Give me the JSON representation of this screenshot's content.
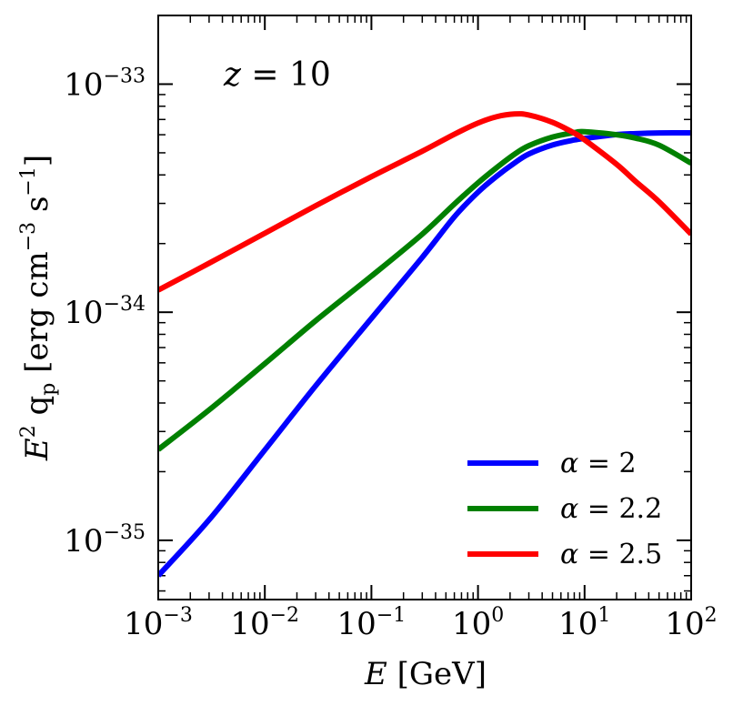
{
  "chart_data": {
    "type": "line",
    "title": "",
    "annotation": {
      "var": "z",
      "eq": " = ",
      "val": "10"
    },
    "xlabel": {
      "var": "E",
      "rest": " [GeV]"
    },
    "ylabel": {
      "var": "E",
      "sup": "2",
      "mid": " q",
      "sub": "p",
      "u1": " [erg cm",
      "sup2": "−3",
      "u2": " s",
      "sup3": "−1",
      "u3": "]"
    },
    "xscale": "log",
    "yscale": "log",
    "xlim": [
      0.001,
      100
    ],
    "ylim": [
      5.5e-36,
      2e-33
    ],
    "x_ticks": [
      {
        "value": 0.001,
        "base": "10",
        "exp": "−3"
      },
      {
        "value": 0.01,
        "base": "10",
        "exp": "−2"
      },
      {
        "value": 0.1,
        "base": "10",
        "exp": "−1"
      },
      {
        "value": 1,
        "base": "10",
        "exp": "0"
      },
      {
        "value": 10,
        "base": "10",
        "exp": "1"
      },
      {
        "value": 100,
        "base": "10",
        "exp": "2"
      }
    ],
    "y_ticks": [
      {
        "value": 1e-35,
        "base": "10",
        "exp": "−35"
      },
      {
        "value": 1e-34,
        "base": "10",
        "exp": "−34"
      },
      {
        "value": 1e-33,
        "base": "10",
        "exp": "−33"
      }
    ],
    "legend_position": "bottom-right",
    "x": [
      0.001,
      0.003,
      0.01,
      0.03,
      0.1,
      0.3,
      0.6,
      1,
      1.5,
      2.2,
      3,
      5,
      8,
      10,
      20,
      30,
      50,
      100
    ],
    "series": [
      {
        "name": "α = 2",
        "label_var": "α",
        "label_rest": " = 2",
        "color": "#0000ff",
        "values": [
          7e-36,
          1.23e-35,
          2.49e-35,
          4.76e-35,
          9.4e-35,
          1.74e-34,
          2.62e-34,
          3.36e-34,
          3.95e-34,
          4.51e-34,
          4.94e-34,
          5.41e-34,
          5.69e-34,
          5.78e-34,
          6.01e-34,
          6.07e-34,
          6.11e-34,
          6.12e-34
        ]
      },
      {
        "name": "α = 2.2",
        "label_var": "α",
        "label_rest": " = 2.2",
        "color": "#008000",
        "values": [
          2.5e-35,
          3.73e-35,
          5.95e-35,
          9.18e-35,
          1.44e-34,
          2.2e-34,
          2.98e-34,
          3.69e-34,
          4.31e-34,
          4.93e-34,
          5.37e-34,
          5.86e-34,
          6.13e-34,
          6.19e-34,
          6e-34,
          5.8e-34,
          5.4e-34,
          4.5e-34
        ]
      },
      {
        "name": "α = 2.5",
        "label_var": "α",
        "label_rest": " = 2.5",
        "color": "#ff0000",
        "values": [
          1.25e-34,
          1.64e-34,
          2.22e-34,
          2.93e-34,
          3.93e-34,
          5.08e-34,
          6.03e-34,
          6.75e-34,
          7.2e-34,
          7.4e-34,
          7.32e-34,
          6.8e-34,
          6.1e-34,
          5.7e-34,
          4.45e-34,
          3.75e-34,
          3.05e-34,
          2.2e-34
        ]
      }
    ]
  }
}
